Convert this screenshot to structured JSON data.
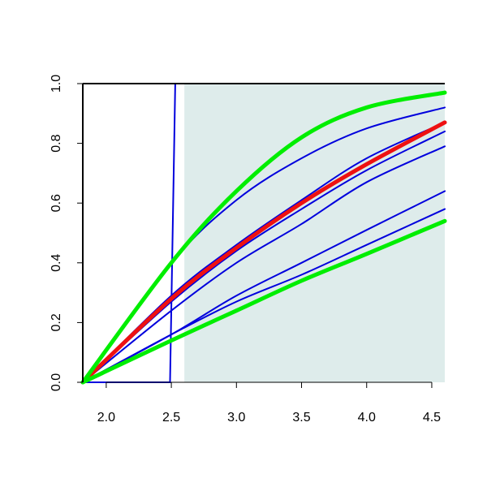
{
  "chart_data": {
    "type": "line",
    "title": "",
    "xlabel": "",
    "ylabel": "",
    "xlim": [
      1.82,
      4.6
    ],
    "ylim": [
      0,
      1
    ],
    "x_ticks": [
      {
        "value": 2.0,
        "label": "2.0"
      },
      {
        "value": 2.5,
        "label": "2.5"
      },
      {
        "value": 3.0,
        "label": "3.0"
      },
      {
        "value": 3.5,
        "label": "3.5"
      },
      {
        "value": 4.0,
        "label": "4.0"
      },
      {
        "value": 4.5,
        "label": "4.5"
      }
    ],
    "y_ticks": [
      {
        "value": 0.0,
        "label": "0.0"
      },
      {
        "value": 0.2,
        "label": "0.2"
      },
      {
        "value": 0.4,
        "label": "0.4"
      },
      {
        "value": 0.6,
        "label": "0.6"
      },
      {
        "value": 0.8,
        "label": "0.8"
      },
      {
        "value": 1.0,
        "label": "1.0"
      }
    ],
    "shaded_region": {
      "x_from": 2.6,
      "x_to": 4.6,
      "y_from": 0,
      "y_to": 1,
      "color": "#deeceb"
    },
    "step_series": {
      "color": "#0000dd",
      "x": [
        1.82,
        2.49,
        2.53,
        4.6
      ],
      "y": [
        0,
        0,
        1,
        1
      ]
    },
    "series": [
      {
        "color": "#0000dd",
        "role": "thin",
        "x": [
          1.82,
          2.5,
          3.0,
          3.5,
          4.0,
          4.6
        ],
        "y": [
          0,
          0.4,
          0.61,
          0.75,
          0.85,
          0.92
        ]
      },
      {
        "color": "#0000dd",
        "role": "thin",
        "x": [
          1.82,
          2.5,
          3.0,
          3.5,
          4.0,
          4.6
        ],
        "y": [
          0,
          0.29,
          0.46,
          0.61,
          0.75,
          0.87
        ]
      },
      {
        "color": "#0000dd",
        "role": "thin",
        "x": [
          1.82,
          2.5,
          3.0,
          3.5,
          4.0,
          4.6
        ],
        "y": [
          0,
          0.27,
          0.44,
          0.58,
          0.71,
          0.84
        ]
      },
      {
        "color": "#0000dd",
        "role": "thin",
        "x": [
          1.82,
          2.5,
          3.0,
          3.5,
          4.0,
          4.6
        ],
        "y": [
          0,
          0.24,
          0.4,
          0.53,
          0.67,
          0.79
        ]
      },
      {
        "color": "#0000dd",
        "role": "thin",
        "x": [
          1.82,
          2.5,
          3.0,
          3.5,
          4.0,
          4.6
        ],
        "y": [
          0,
          0.16,
          0.29,
          0.4,
          0.51,
          0.64
        ]
      },
      {
        "color": "#0000dd",
        "role": "thin",
        "x": [
          1.82,
          2.5,
          3.0,
          3.5,
          4.0,
          4.6
        ],
        "y": [
          0,
          0.16,
          0.27,
          0.36,
          0.46,
          0.58
        ]
      },
      {
        "color": "#ee1111",
        "role": "thick",
        "x": [
          1.82,
          2.5,
          3.0,
          3.5,
          4.0,
          4.6
        ],
        "y": [
          0,
          0.28,
          0.45,
          0.6,
          0.73,
          0.87
        ]
      },
      {
        "color": "#00ee00",
        "role": "thick",
        "x": [
          1.82,
          2.5,
          3.0,
          3.5,
          4.0,
          4.6
        ],
        "y": [
          0,
          0.4,
          0.64,
          0.82,
          0.92,
          0.97
        ]
      },
      {
        "color": "#00ee00",
        "role": "thick",
        "x": [
          1.82,
          2.5,
          3.0,
          3.5,
          4.0,
          4.6
        ],
        "y": [
          0,
          0.14,
          0.24,
          0.34,
          0.43,
          0.54
        ]
      }
    ],
    "grid": false,
    "legend": "none"
  }
}
